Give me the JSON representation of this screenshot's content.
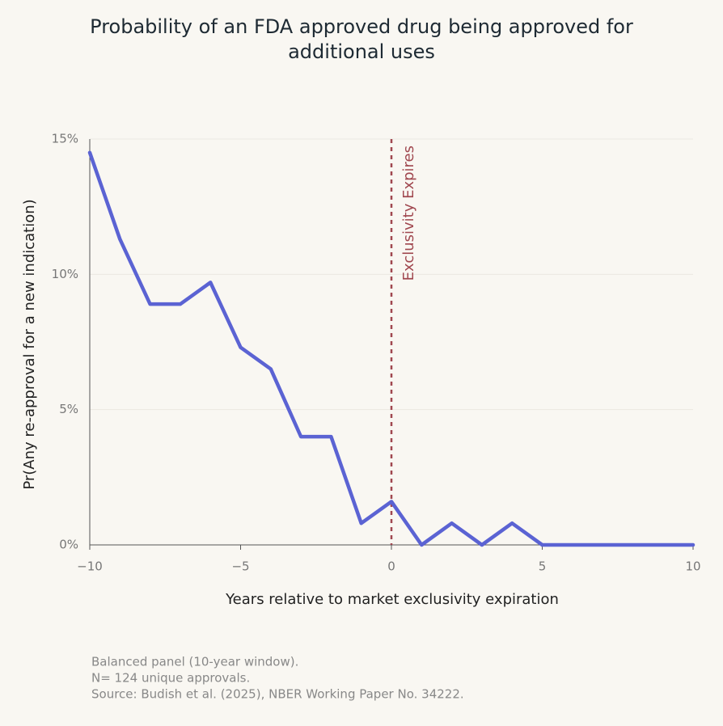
{
  "chart_data": {
    "type": "line",
    "title": "Probability of an FDA approved drug being approved for additional uses",
    "x_label": "Years relative to market exclusivity expiration",
    "y_label": "Pr(Any re-approval for a new indication)",
    "x": [
      -10,
      -9,
      -8,
      -7,
      -6,
      -5,
      -4,
      -3,
      -2,
      -1,
      0,
      1,
      2,
      3,
      4,
      5,
      6,
      7,
      8,
      9,
      10
    ],
    "values": [
      14.5,
      11.3,
      8.9,
      8.9,
      9.7,
      7.3,
      6.5,
      4.0,
      4.0,
      0.8,
      1.6,
      0,
      0.8,
      0,
      0.8,
      0,
      0,
      0,
      0,
      0,
      0
    ],
    "color": "#5b63d3",
    "xlim": [
      -10,
      10
    ],
    "xticks": [
      {
        "value": -10,
        "label": "−10"
      },
      {
        "value": -5,
        "label": "−5"
      },
      0,
      5,
      10
    ],
    "ylim": [
      0,
      15
    ],
    "yticks": [
      {
        "value": 0,
        "label": "0%"
      },
      {
        "value": 5,
        "label": "5%"
      },
      {
        "value": 10,
        "label": "10%"
      },
      {
        "value": 15,
        "label": "15%"
      }
    ],
    "grid": true,
    "vline": {
      "x": 0,
      "label": "Exclusivity Expires",
      "color": "#a0474f"
    },
    "caption": [
      "Balanced panel (10-year window).",
      "N= 124 unique approvals.",
      "Source: Budish et al. (2025), NBER Working Paper No. 34222."
    ]
  }
}
